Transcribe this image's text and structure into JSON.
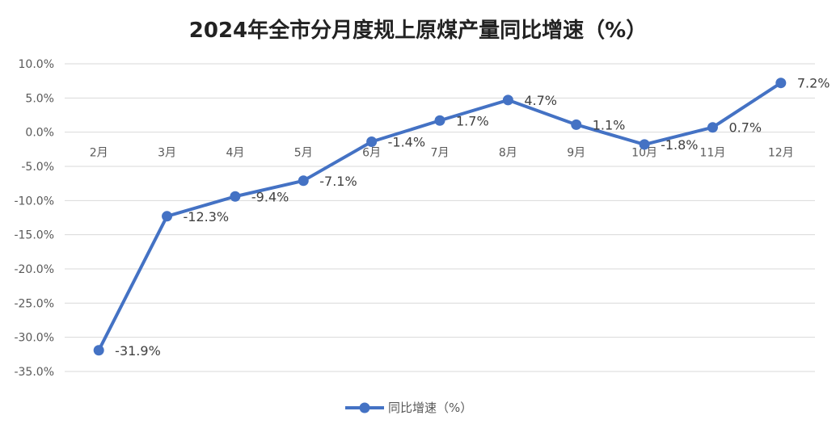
{
  "chart_data": {
    "type": "line",
    "title": "2024年全市分月度规上原煤产量同比增速（%）",
    "categories": [
      "2月",
      "3月",
      "4月",
      "5月",
      "6月",
      "7月",
      "8月",
      "9月",
      "10月",
      "11月",
      "12月"
    ],
    "series": [
      {
        "name": "同比增速（%）",
        "values": [
          -31.9,
          -12.3,
          -9.4,
          -7.1,
          -1.4,
          1.7,
          4.7,
          1.1,
          -1.8,
          0.7,
          7.2
        ],
        "data_labels": [
          "-31.9%",
          "-12.3%",
          "-9.4%",
          "-7.1%",
          "-1.4%",
          "1.7%",
          "4.7%",
          "1.1%",
          "-1.8%",
          "0.7%",
          "7.2%"
        ],
        "color": "#4472C4"
      }
    ],
    "y_ticks": [
      "10.0%",
      "5.0%",
      "0.0%",
      "-5.0%",
      "-10.0%",
      "-15.0%",
      "-20.0%",
      "-25.0%",
      "-30.0%",
      "-35.0%"
    ],
    "ylim": [
      -35,
      10
    ],
    "grid": true,
    "legend_position": "bottom"
  },
  "colors": {
    "series": "#4472C4",
    "grid": "#D9D9D9",
    "text": "#595959"
  }
}
